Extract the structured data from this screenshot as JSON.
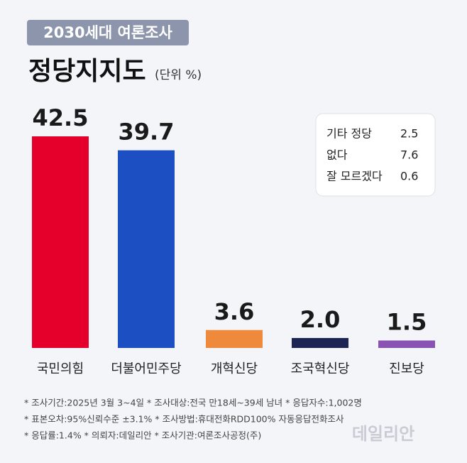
{
  "chart_data": {
    "type": "bar",
    "badge": "2030세대 여론조사",
    "title": "정당지지도",
    "unit_note": "(단위 %)",
    "categories": [
      "국민의힘",
      "더불어민주당",
      "개혁신당",
      "조국혁신당",
      "진보당"
    ],
    "values": [
      42.5,
      39.7,
      3.6,
      2.0,
      1.5
    ],
    "value_labels": [
      "42.5",
      "39.7",
      "3.6",
      "2.0",
      "1.5"
    ],
    "colors": [
      "#e4002b",
      "#1c4fc2",
      "#ef8a3c",
      "#1b2452",
      "#8a52b3"
    ],
    "other_items": [
      {
        "label": "기타 정당",
        "value": 2.5
      },
      {
        "label": "없다",
        "value": 7.6
      },
      {
        "label": "잘 모르겠다",
        "value": 0.6
      }
    ],
    "footnotes": [
      "* 조사기간:2025년 3월 3~4일  * 조사대상:전국 만18세~39세 남녀  * 응답자수:1,002명",
      "* 표본오차:95%신뢰수준 ±3.1%  * 조사방법:휴대전화RDD100% 자동응답전화조사",
      "* 응답률:1.4%  * 의뢰자:데일리안  * 조사기관:여론조사공정(주)"
    ],
    "watermark": "데일리안"
  }
}
